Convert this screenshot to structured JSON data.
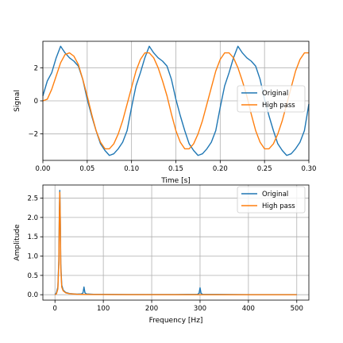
{
  "colors": {
    "original": "#1f77b4",
    "high_pass": "#ff7f0e",
    "grid": "#b0b0b0"
  },
  "chart_data": [
    {
      "type": "line",
      "xlabel": "Time [s]",
      "ylabel": "Signal",
      "xlim": [
        0.0,
        0.3
      ],
      "ylim": [
        -3.6,
        3.6
      ],
      "xticks": [
        0.0,
        0.05,
        0.1,
        0.15,
        0.2,
        0.25,
        0.3
      ],
      "xtick_labels": [
        "0.00",
        "0.05",
        "0.10",
        "0.15",
        "0.20",
        "0.25",
        "0.30"
      ],
      "yticks": [
        -2,
        0,
        2
      ],
      "ytick_labels": [
        "−2",
        "0",
        "2"
      ],
      "grid": true,
      "legend_position": "right",
      "series": [
        {
          "name": "Original",
          "color": "#1f77b4",
          "x": [
            0.0,
            0.005,
            0.01,
            0.015,
            0.02,
            0.025,
            0.03,
            0.035,
            0.04,
            0.045,
            0.05,
            0.055,
            0.06,
            0.065,
            0.07,
            0.075,
            0.08,
            0.085,
            0.09,
            0.095,
            0.1,
            0.105,
            0.11,
            0.115,
            0.12,
            0.125,
            0.13,
            0.135,
            0.14,
            0.145,
            0.15,
            0.155,
            0.16,
            0.165,
            0.17,
            0.175,
            0.18,
            0.185,
            0.19,
            0.195,
            0.2,
            0.205,
            0.21,
            0.215,
            0.22,
            0.225,
            0.23,
            0.235,
            0.24,
            0.245,
            0.25,
            0.255,
            0.26,
            0.265,
            0.27,
            0.275,
            0.28,
            0.285,
            0.29,
            0.295,
            0.3
          ],
          "y": [
            0.3,
            1.2,
            1.7,
            2.6,
            3.3,
            2.9,
            2.6,
            2.4,
            2.1,
            1.3,
            0.1,
            -0.9,
            -1.8,
            -2.6,
            -3.0,
            -3.3,
            -3.2,
            -2.9,
            -2.5,
            -1.8,
            -0.4,
            0.9,
            1.7,
            2.6,
            3.3,
            2.9,
            2.6,
            2.4,
            2.1,
            1.3,
            0.1,
            -0.9,
            -1.8,
            -2.6,
            -3.0,
            -3.3,
            -3.2,
            -2.9,
            -2.5,
            -1.8,
            -0.4,
            0.9,
            1.7,
            2.6,
            3.3,
            2.9,
            2.6,
            2.4,
            2.1,
            1.3,
            0.1,
            -0.9,
            -1.8,
            -2.6,
            -3.0,
            -3.3,
            -3.2,
            -2.9,
            -2.5,
            -1.8,
            -0.2
          ]
        },
        {
          "name": "High pass",
          "color": "#ff7f0e",
          "x": [
            0.0,
            0.005,
            0.01,
            0.015,
            0.02,
            0.025,
            0.03,
            0.035,
            0.04,
            0.045,
            0.05,
            0.055,
            0.06,
            0.065,
            0.07,
            0.075,
            0.08,
            0.085,
            0.09,
            0.095,
            0.1,
            0.105,
            0.11,
            0.115,
            0.12,
            0.125,
            0.13,
            0.135,
            0.14,
            0.145,
            0.15,
            0.155,
            0.16,
            0.165,
            0.17,
            0.175,
            0.18,
            0.185,
            0.19,
            0.195,
            0.2,
            0.205,
            0.21,
            0.215,
            0.22,
            0.225,
            0.23,
            0.235,
            0.24,
            0.245,
            0.25,
            0.255,
            0.26,
            0.265,
            0.27,
            0.275,
            0.28,
            0.285,
            0.29,
            0.295,
            0.3
          ],
          "y": [
            0.0,
            0.1,
            0.7,
            1.5,
            2.3,
            2.8,
            2.9,
            2.7,
            2.2,
            1.3,
            0.3,
            -0.8,
            -1.8,
            -2.5,
            -2.9,
            -2.9,
            -2.6,
            -2.0,
            -1.2,
            -0.2,
            0.8,
            1.8,
            2.5,
            2.9,
            2.9,
            2.6,
            2.0,
            1.2,
            0.3,
            -0.8,
            -1.8,
            -2.5,
            -2.9,
            -2.9,
            -2.6,
            -2.0,
            -1.2,
            -0.2,
            0.8,
            1.8,
            2.5,
            2.9,
            2.9,
            2.6,
            2.0,
            1.2,
            0.3,
            -0.8,
            -1.8,
            -2.5,
            -2.9,
            -2.9,
            -2.6,
            -2.0,
            -1.2,
            -0.2,
            0.8,
            1.8,
            2.5,
            2.9,
            2.9
          ]
        }
      ]
    },
    {
      "type": "line",
      "xlabel": "Frequency [Hz]",
      "ylabel": "Amplitude",
      "xlim": [
        -25,
        525
      ],
      "ylim": [
        -0.14,
        2.84
      ],
      "xticks": [
        0,
        100,
        200,
        300,
        400,
        500
      ],
      "xtick_labels": [
        "0",
        "100",
        "200",
        "300",
        "400",
        "500"
      ],
      "yticks": [
        0.0,
        0.5,
        1.0,
        1.5,
        2.0,
        2.5
      ],
      "ytick_labels": [
        "0.0",
        "0.5",
        "1.0",
        "1.5",
        "2.0",
        "2.5"
      ],
      "grid": true,
      "legend_position": "upper right",
      "series": [
        {
          "name": "Original",
          "color": "#1f77b4",
          "x": [
            0,
            3,
            6,
            8,
            9,
            10,
            11,
            12,
            14,
            17,
            22,
            30,
            45,
            55,
            58,
            60,
            62,
            65,
            80,
            150,
            250,
            295,
            298,
            300,
            302,
            305,
            400,
            500
          ],
          "y": [
            0.0,
            0.05,
            0.2,
            0.9,
            2.1,
            2.7,
            2.0,
            0.8,
            0.25,
            0.12,
            0.06,
            0.03,
            0.015,
            0.02,
            0.05,
            0.2,
            0.05,
            0.02,
            0.01,
            0.005,
            0.005,
            0.01,
            0.04,
            0.18,
            0.04,
            0.01,
            0.003,
            0.002
          ]
        },
        {
          "name": "High pass",
          "color": "#ff7f0e",
          "x": [
            0,
            3,
            6,
            8,
            9,
            10,
            11,
            12,
            14,
            17,
            22,
            30,
            45,
            60,
            80,
            150,
            300,
            400,
            500
          ],
          "y": [
            0.0,
            0.02,
            0.15,
            0.8,
            2.0,
            2.65,
            1.9,
            0.7,
            0.2,
            0.1,
            0.05,
            0.025,
            0.012,
            0.008,
            0.005,
            0.002,
            0.001,
            0.0,
            0.0
          ]
        }
      ]
    }
  ]
}
